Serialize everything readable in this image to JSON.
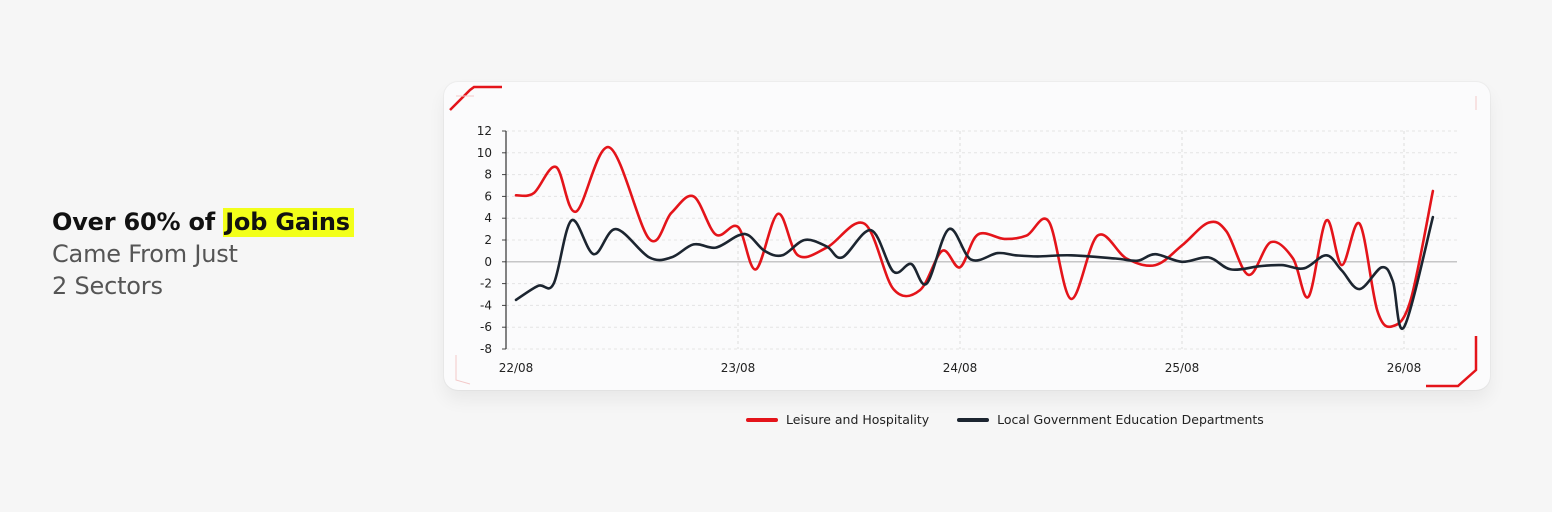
{
  "headline": {
    "line1_prefix": "Over 60% of ",
    "line1_highlight": "Job Gains",
    "line2": "Came From Just",
    "line3": "2 Sectors"
  },
  "colors": {
    "accent": "#e4141a",
    "highlight": "#f2ff1a",
    "series2": "#1c2530"
  },
  "chart_data": {
    "type": "line",
    "title": "",
    "xlabel": "",
    "ylabel": "",
    "ylim": [
      -8,
      12
    ],
    "yticks": [
      12,
      10,
      8,
      6,
      4,
      2,
      0,
      -2,
      -4,
      -6,
      -8
    ],
    "xticks": [
      {
        "label": "22/08",
        "x": 0
      },
      {
        "label": "23/08",
        "x": 1
      },
      {
        "label": "24/08",
        "x": 2
      },
      {
        "label": "25/08",
        "x": 3
      },
      {
        "label": "26/08",
        "x": 4
      }
    ],
    "xlim": [
      0,
      4.13
    ],
    "grid": true,
    "legend_position": "bottom-center",
    "series": [
      {
        "name": "Leisure and Hospitality",
        "color": "#e4141a",
        "points": [
          [
            0.0,
            6.1
          ],
          [
            0.08,
            6.3
          ],
          [
            0.18,
            8.7
          ],
          [
            0.27,
            4.6
          ],
          [
            0.42,
            10.5
          ],
          [
            0.6,
            2.1
          ],
          [
            0.7,
            4.5
          ],
          [
            0.8,
            6.0
          ],
          [
            0.9,
            2.5
          ],
          [
            1.0,
            3.2
          ],
          [
            1.08,
            -0.7
          ],
          [
            1.18,
            4.4
          ],
          [
            1.27,
            0.6
          ],
          [
            1.4,
            1.3
          ],
          [
            1.57,
            3.5
          ],
          [
            1.7,
            -2.5
          ],
          [
            1.82,
            -2.6
          ],
          [
            1.92,
            1.0
          ],
          [
            2.0,
            -0.5
          ],
          [
            2.08,
            2.5
          ],
          [
            2.2,
            2.1
          ],
          [
            2.3,
            2.4
          ],
          [
            2.4,
            3.7
          ],
          [
            2.5,
            -3.4
          ],
          [
            2.62,
            2.4
          ],
          [
            2.75,
            0.3
          ],
          [
            2.88,
            -0.3
          ],
          [
            3.0,
            1.5
          ],
          [
            3.12,
            3.6
          ],
          [
            3.2,
            2.8
          ],
          [
            3.3,
            -1.2
          ],
          [
            3.4,
            1.8
          ],
          [
            3.5,
            0.3
          ],
          [
            3.57,
            -3.2
          ],
          [
            3.65,
            3.8
          ],
          [
            3.72,
            -0.3
          ],
          [
            3.8,
            3.5
          ],
          [
            3.88,
            -4.5
          ],
          [
            3.95,
            -5.9
          ],
          [
            4.03,
            -3.5
          ],
          [
            4.13,
            6.5
          ]
        ]
      },
      {
        "name": "Local Government Education Departments",
        "color": "#1c2530",
        "points": [
          [
            0.0,
            -3.5
          ],
          [
            0.1,
            -2.2
          ],
          [
            0.17,
            -2.0
          ],
          [
            0.25,
            3.8
          ],
          [
            0.35,
            0.7
          ],
          [
            0.45,
            3.0
          ],
          [
            0.6,
            0.4
          ],
          [
            0.7,
            0.4
          ],
          [
            0.8,
            1.6
          ],
          [
            0.9,
            1.3
          ],
          [
            1.0,
            2.4
          ],
          [
            1.05,
            2.4
          ],
          [
            1.12,
            1.0
          ],
          [
            1.2,
            0.6
          ],
          [
            1.3,
            2.0
          ],
          [
            1.4,
            1.4
          ],
          [
            1.47,
            0.4
          ],
          [
            1.6,
            2.9
          ],
          [
            1.7,
            -0.9
          ],
          [
            1.78,
            -0.2
          ],
          [
            1.85,
            -2.0
          ],
          [
            1.95,
            3.0
          ],
          [
            2.05,
            0.2
          ],
          [
            2.17,
            0.8
          ],
          [
            2.25,
            0.6
          ],
          [
            2.35,
            0.5
          ],
          [
            2.5,
            0.6
          ],
          [
            2.7,
            0.3
          ],
          [
            2.8,
            0.1
          ],
          [
            2.88,
            0.7
          ],
          [
            3.0,
            0.0
          ],
          [
            3.12,
            0.4
          ],
          [
            3.22,
            -0.7
          ],
          [
            3.35,
            -0.4
          ],
          [
            3.45,
            -0.3
          ],
          [
            3.55,
            -0.6
          ],
          [
            3.65,
            0.6
          ],
          [
            3.72,
            -0.8
          ],
          [
            3.8,
            -2.5
          ],
          [
            3.9,
            -0.5
          ],
          [
            3.95,
            -1.8
          ],
          [
            4.0,
            -6.0
          ],
          [
            4.13,
            4.1
          ]
        ]
      }
    ]
  }
}
